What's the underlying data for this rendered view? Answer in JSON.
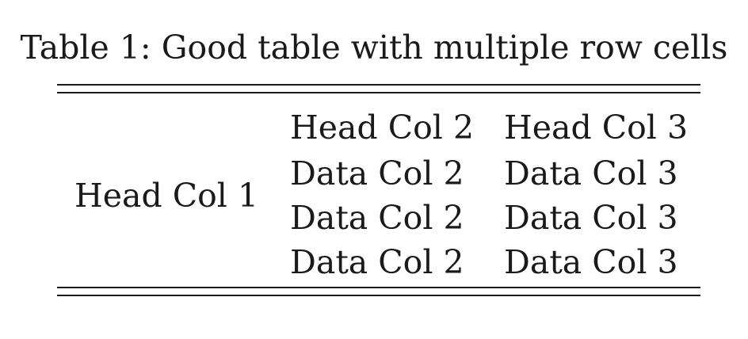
{
  "caption": "Table 1: Good table with multiple row cells",
  "table": {
    "merged_cell": "Head Col 1",
    "rows": [
      [
        "Head Col 2",
        "Head Col 3"
      ],
      [
        "Data Col 2",
        "Data Col 3"
      ],
      [
        "Data Col 2",
        "Data Col 3"
      ],
      [
        "Data Col 2",
        "Data Col 3"
      ]
    ]
  }
}
